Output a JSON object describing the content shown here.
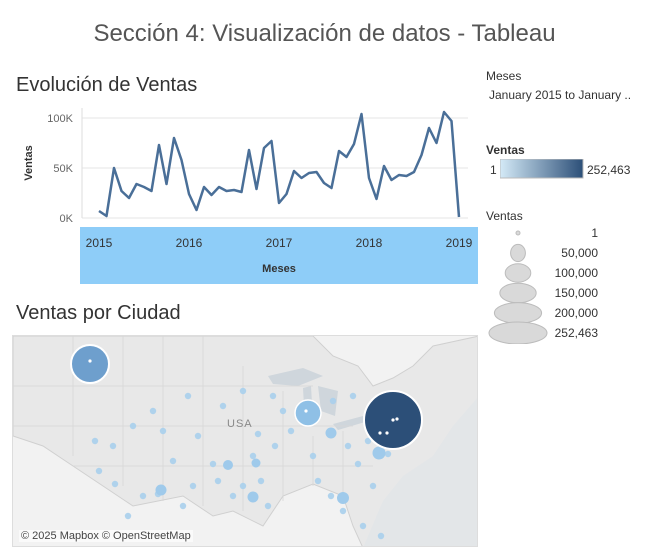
{
  "dashboard": {
    "title": "Sección 4: Visualización de datos - Tableau"
  },
  "line_sheet": {
    "title": "Evolución de Ventas",
    "band_color": "#8ecdf8",
    "line_color": "#4a6f98"
  },
  "map_sheet": {
    "title": "Ventas por Ciudad",
    "country_label": "USA",
    "attribution": "© 2025 Mapbox © OpenStreetMap"
  },
  "filter": {
    "label": "Meses",
    "value": "January 2015 to January .."
  },
  "color_legend": {
    "label": "Ventas",
    "min": "1",
    "max": "252,463",
    "color_low": "#d4eaf7",
    "color_high": "#2c4f78"
  },
  "size_legend": {
    "label": "Ventas",
    "items": [
      "1",
      "50,000",
      "100,000",
      "150,000",
      "200,000",
      "252,463"
    ],
    "fractions": [
      0,
      0.2,
      0.4,
      0.6,
      0.8,
      1
    ]
  },
  "chart_data": {
    "type": "line",
    "xlabel": "Meses",
    "ylabel": "Ventas",
    "yticks": [
      "0K",
      "50K",
      "100K"
    ],
    "xticks": [
      "2015",
      "2016",
      "2017",
      "2018",
      "2019"
    ],
    "ylim": [
      0,
      110000
    ],
    "x_range": [
      "2015-01",
      "2019-01"
    ],
    "x": [
      "2015-01",
      "2015-02",
      "2015-03",
      "2015-04",
      "2015-05",
      "2015-06",
      "2015-07",
      "2015-08",
      "2015-09",
      "2015-10",
      "2015-11",
      "2015-12",
      "2016-01",
      "2016-02",
      "2016-03",
      "2016-04",
      "2016-05",
      "2016-06",
      "2016-07",
      "2016-08",
      "2016-09",
      "2016-10",
      "2016-11",
      "2016-12",
      "2017-01",
      "2017-02",
      "2017-03",
      "2017-04",
      "2017-05",
      "2017-06",
      "2017-07",
      "2017-08",
      "2017-09",
      "2017-10",
      "2017-11",
      "2017-12",
      "2018-01",
      "2018-02",
      "2018-03",
      "2018-04",
      "2018-05",
      "2018-06",
      "2018-07",
      "2018-08",
      "2018-09",
      "2018-10",
      "2018-11",
      "2018-12",
      "2019-01"
    ],
    "values": [
      7000,
      2000,
      50000,
      27000,
      20000,
      34000,
      31000,
      27000,
      73000,
      34000,
      80000,
      58000,
      24000,
      8000,
      31000,
      23000,
      31000,
      27000,
      28000,
      26000,
      68000,
      29000,
      70000,
      77000,
      15000,
      24000,
      47000,
      40000,
      45000,
      46000,
      35000,
      30000,
      67000,
      61000,
      74000,
      104000,
      40000,
      19000,
      52000,
      38000,
      43000,
      42000,
      46000,
      63000,
      90000,
      75000,
      106000,
      97000,
      1000
    ],
    "grid": true
  }
}
